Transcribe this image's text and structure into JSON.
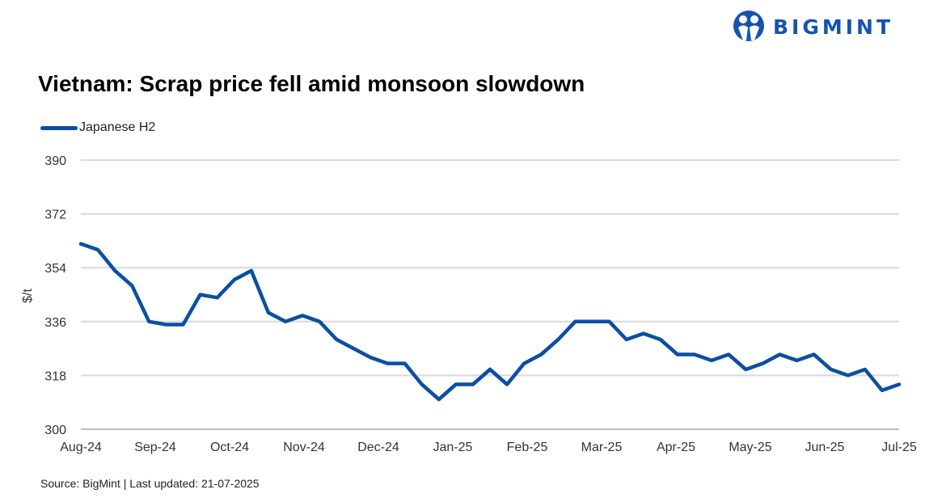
{
  "brand": {
    "name": "BIGMINT",
    "color": "#1553b0"
  },
  "chart_data": {
    "type": "line",
    "title": "Vietnam: Scrap price fell amid monsoon slowdown",
    "ylabel": "$/t",
    "xlabel": "",
    "ylim": [
      300,
      390
    ],
    "yticks": [
      300,
      318,
      336,
      354,
      372,
      390
    ],
    "x_tick_labels": [
      "Aug-24",
      "Sep-24",
      "Oct-24",
      "Nov-24",
      "Dec-24",
      "Jan-25",
      "Feb-25",
      "Mar-25",
      "Apr-25",
      "May-25",
      "Jun-25",
      "Jul-25"
    ],
    "grid": true,
    "legend_position": "top-left",
    "series": [
      {
        "name": "Japanese H2",
        "color": "#0a4fa3",
        "values": [
          362,
          360,
          353,
          348,
          336,
          335,
          335,
          345,
          344,
          350,
          353,
          339,
          336,
          338,
          336,
          330,
          327,
          324,
          322,
          322,
          315,
          310,
          315,
          315,
          320,
          315,
          322,
          325,
          330,
          336,
          336,
          336,
          330,
          332,
          330,
          325,
          325,
          323,
          325,
          320,
          322,
          325,
          323,
          325,
          320,
          318,
          320,
          313,
          315
        ]
      }
    ]
  },
  "source": "Source: BigMint | Last updated: 21-07-2025"
}
